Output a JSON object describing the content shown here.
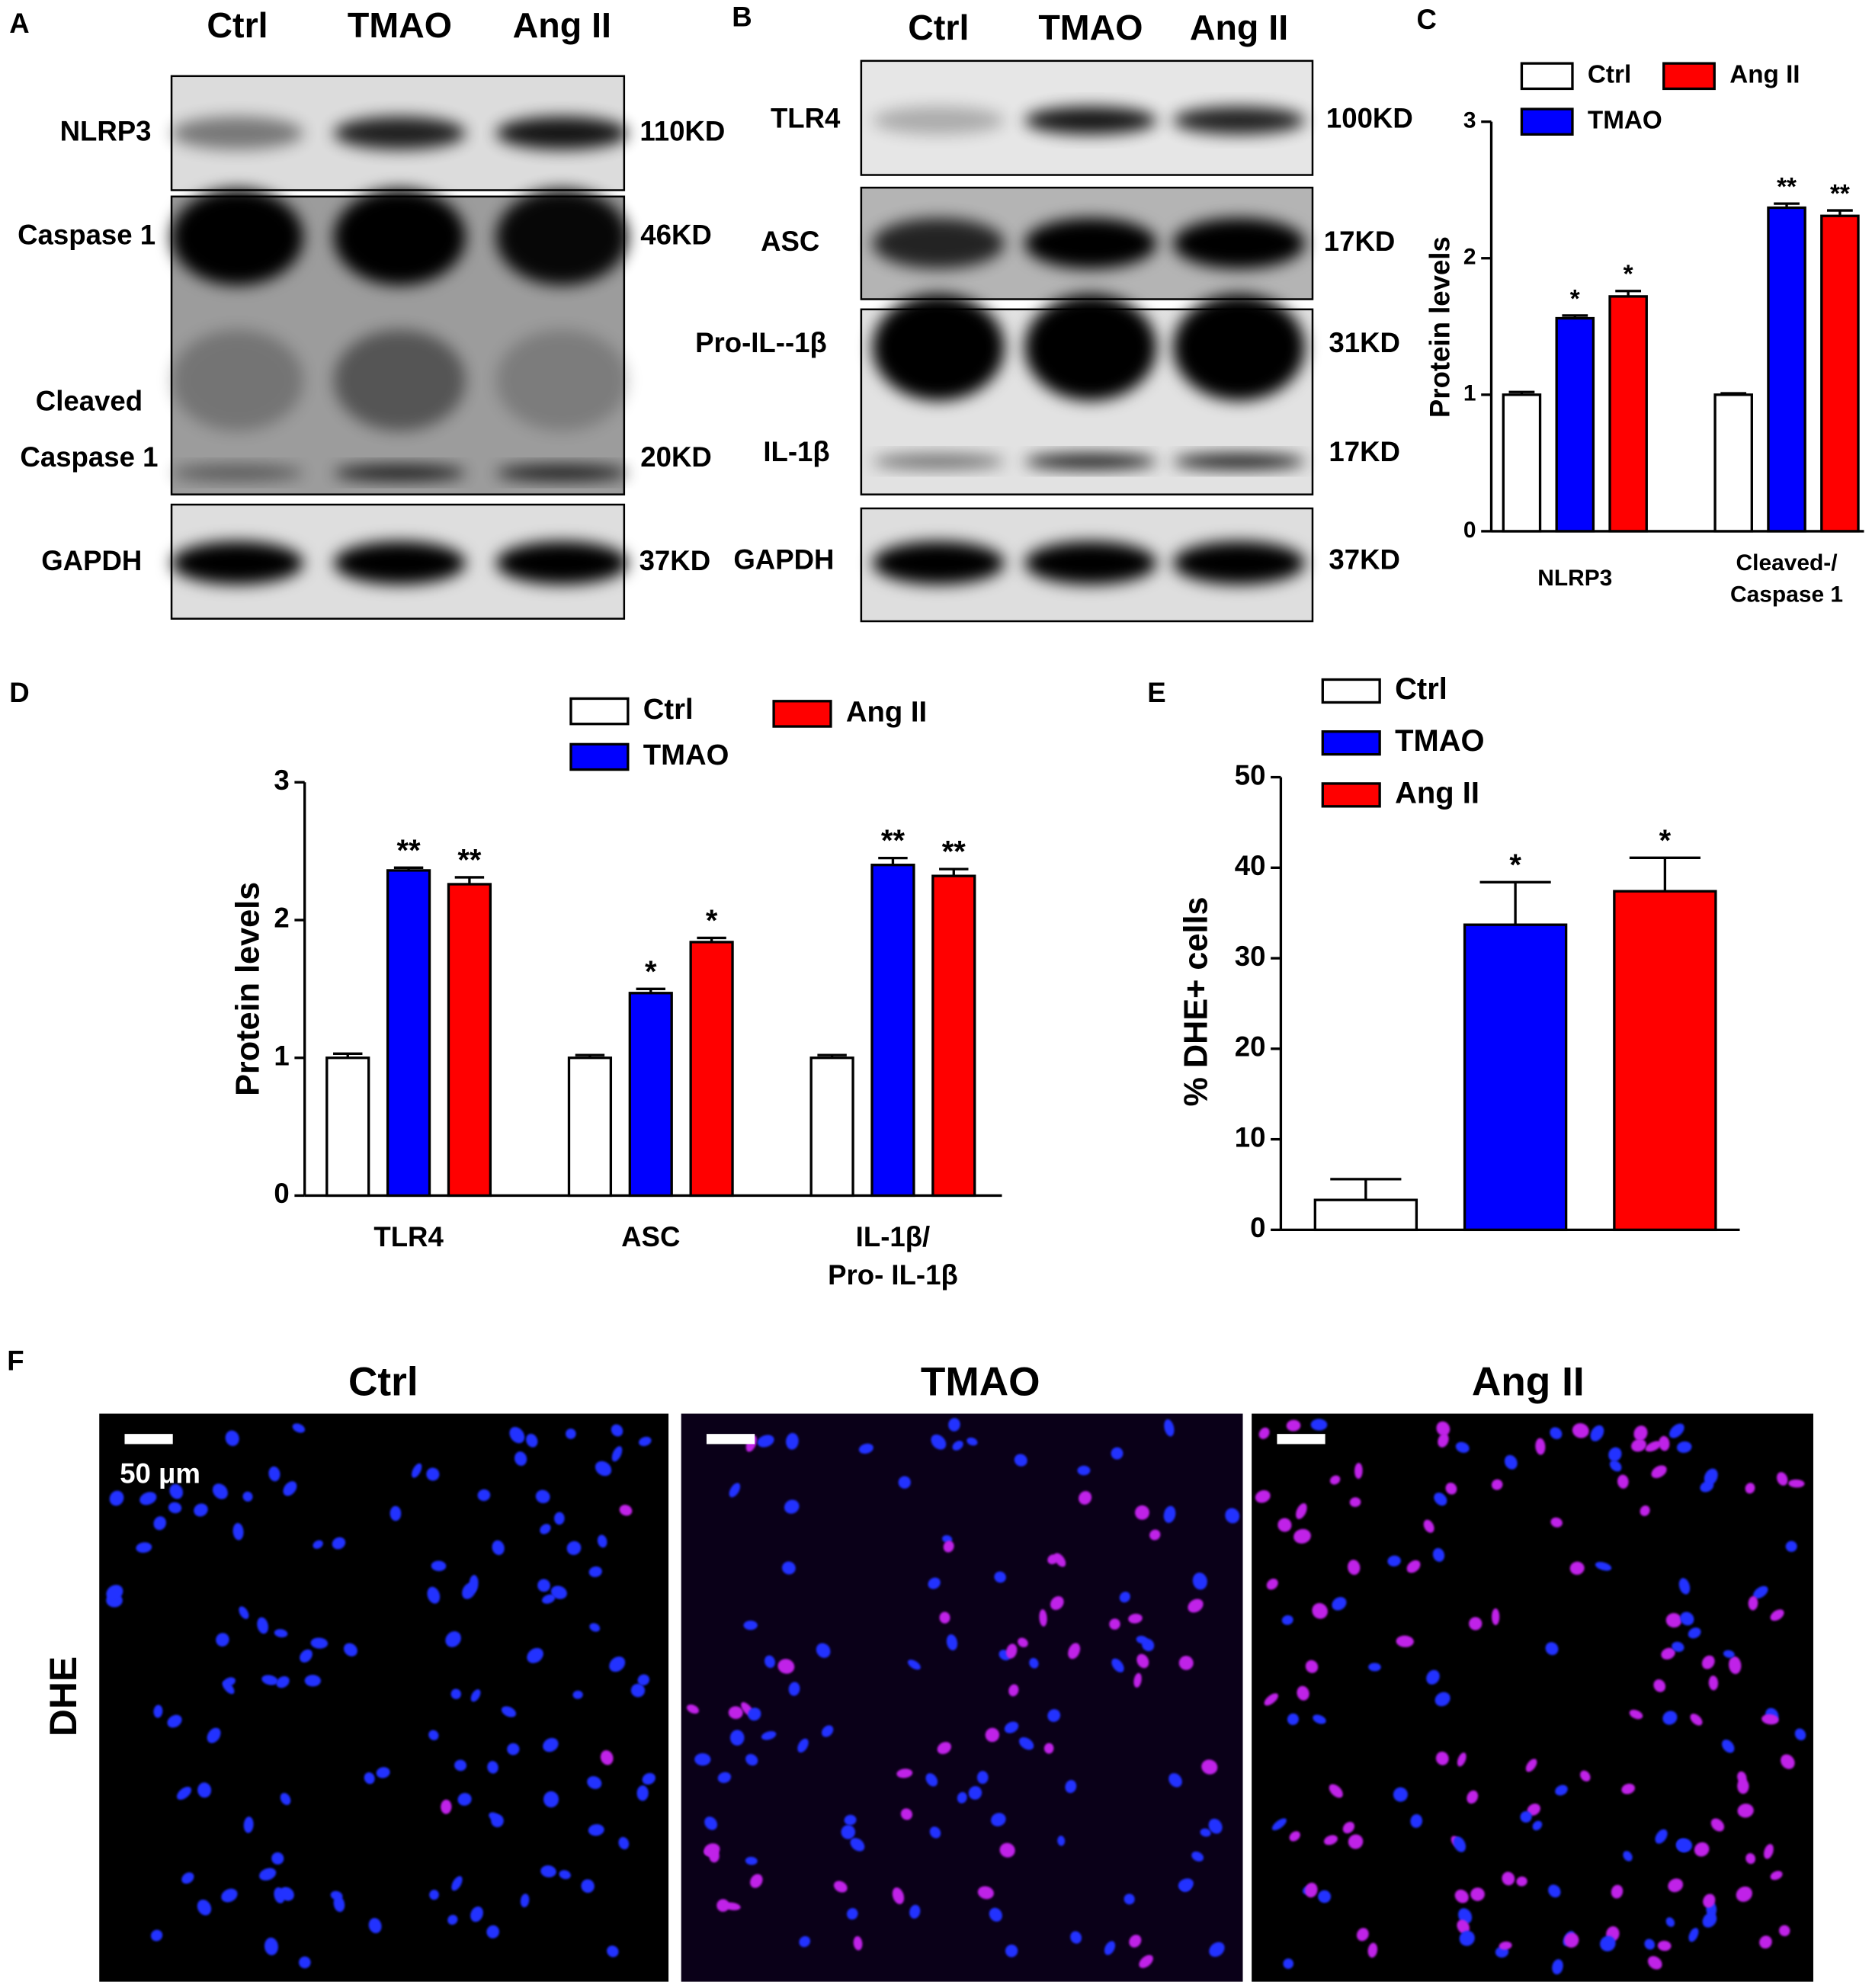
{
  "chart_data": [
    {
      "type": "bar",
      "panel": "C",
      "ylabel": "Protein levels",
      "categories": [
        "NLRP3",
        "Cleaved-/\nCaspase 1"
      ],
      "ylim": [
        0,
        3
      ],
      "yticks": [
        0,
        1,
        2,
        3
      ],
      "series": [
        {
          "name": "Ctrl",
          "color": "#ffffff",
          "values": [
            1.0,
            1.0
          ],
          "errors": [
            0.02,
            0.01
          ],
          "significance": [
            null,
            null
          ]
        },
        {
          "name": "TMAO",
          "color": "#0000ff",
          "values": [
            1.56,
            2.37
          ],
          "errors": [
            0.02,
            0.03
          ],
          "significance": [
            "*",
            "**"
          ]
        },
        {
          "name": "Ang II",
          "color": "#ff0000",
          "values": [
            1.72,
            2.31
          ],
          "errors": [
            0.04,
            0.04
          ],
          "significance": [
            "*",
            "**"
          ]
        }
      ]
    },
    {
      "type": "bar",
      "panel": "D",
      "ylabel": "Protein levels",
      "categories": [
        "TLR4",
        "ASC",
        "IL-1β/\nPro- IL-1β"
      ],
      "ylim": [
        0,
        3
      ],
      "yticks": [
        0,
        1,
        2,
        3
      ],
      "series": [
        {
          "name": "Ctrl",
          "color": "#ffffff",
          "values": [
            1.0,
            1.0,
            1.0
          ],
          "errors": [
            0.03,
            0.02,
            0.02
          ],
          "significance": [
            null,
            null,
            null
          ]
        },
        {
          "name": "TMAO",
          "color": "#0000ff",
          "values": [
            2.36,
            1.47,
            2.4
          ],
          "errors": [
            0.02,
            0.03,
            0.05
          ],
          "significance": [
            "**",
            "*",
            "**"
          ]
        },
        {
          "name": "Ang II",
          "color": "#ff0000",
          "values": [
            2.26,
            1.84,
            2.32
          ],
          "errors": [
            0.05,
            0.03,
            0.05
          ],
          "significance": [
            "**",
            "*",
            "**"
          ]
        }
      ]
    },
    {
      "type": "bar",
      "panel": "E",
      "ylabel": "% DHE+ cells",
      "categories": [
        null
      ],
      "ylim": [
        0,
        50
      ],
      "yticks": [
        0,
        10,
        20,
        30,
        40,
        50
      ],
      "series": [
        {
          "name": "Ctrl",
          "color": "#ffffff",
          "values": [
            3.3
          ],
          "errors": [
            2.3
          ],
          "significance": [
            null
          ]
        },
        {
          "name": "TMAO",
          "color": "#0000ff",
          "values": [
            33.7
          ],
          "errors": [
            4.7
          ],
          "significance": [
            "*"
          ]
        },
        {
          "name": "Ang II",
          "color": "#ff0000",
          "values": [
            37.4
          ],
          "errors": [
            3.7
          ],
          "significance": [
            "*"
          ]
        }
      ]
    }
  ],
  "blots": [
    {
      "panel": "A",
      "columns": [
        "Ctrl",
        "TMAO",
        "Ang II"
      ],
      "left_labels": [
        "NLRP3",
        "Caspase 1",
        "Cleaved",
        "Caspase 1",
        "GAPDH"
      ],
      "right_labels": [
        "110KD",
        "46KD",
        "20KD",
        "37KD"
      ]
    },
    {
      "panel": "B",
      "columns": [
        "Ctrl",
        "TMAO",
        "Ang II"
      ],
      "left_labels": [
        "TLR4",
        "ASC",
        "Pro-IL--1β",
        "IL-1β",
        "GAPDH"
      ],
      "right_labels": [
        "100KD",
        "17KD",
        "31KD",
        "17KD",
        "37KD"
      ]
    }
  ],
  "images": {
    "panel": "F",
    "columns": [
      "Ctrl",
      "TMAO",
      "Ang II"
    ],
    "row_label": "DHE",
    "scale_label": "50 μm"
  }
}
